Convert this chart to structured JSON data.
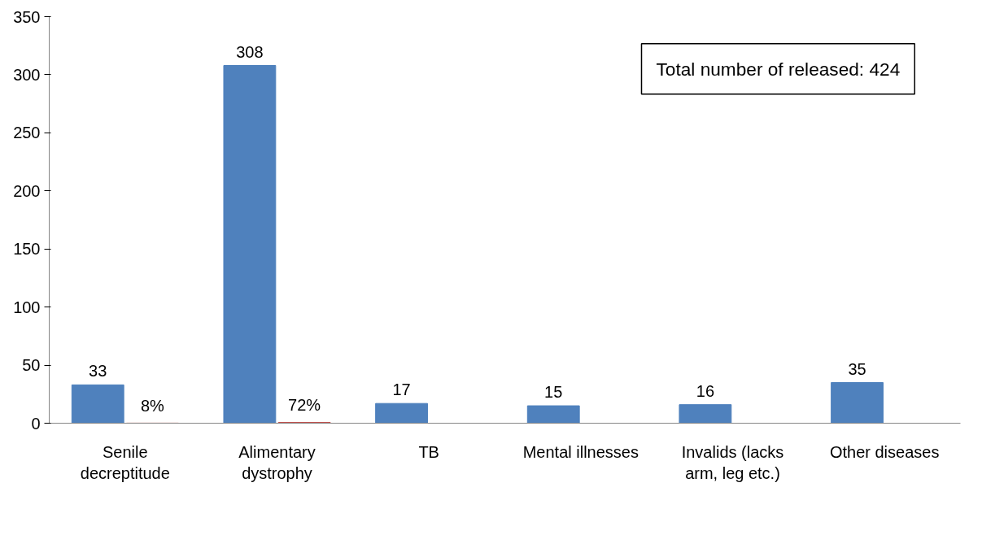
{
  "chart_data": {
    "type": "bar",
    "categories": [
      "Senile decreptitude",
      "Alimentary dystrophy",
      "TB",
      "Mental illnesses",
      "Invalids (lacks arm, leg etc.)",
      "Other diseases"
    ],
    "series": [
      {
        "color": "#4f81bd",
        "values": [
          33,
          308,
          17,
          15,
          16,
          35
        ],
        "value_labels": [
          "33",
          "308",
          "17",
          "15",
          "16",
          "35"
        ]
      },
      {
        "color": "#c0504d",
        "values": [
          0.08,
          0.72,
          null,
          null,
          null,
          null
        ],
        "value_labels": [
          "8%",
          "72%",
          null,
          null,
          null,
          null
        ]
      }
    ],
    "ylim": [
      0,
      350
    ],
    "yticks": [
      0,
      50,
      100,
      150,
      200,
      250,
      300,
      350
    ],
    "grid": false,
    "annotations": [
      "Total number of released: 424"
    ]
  }
}
